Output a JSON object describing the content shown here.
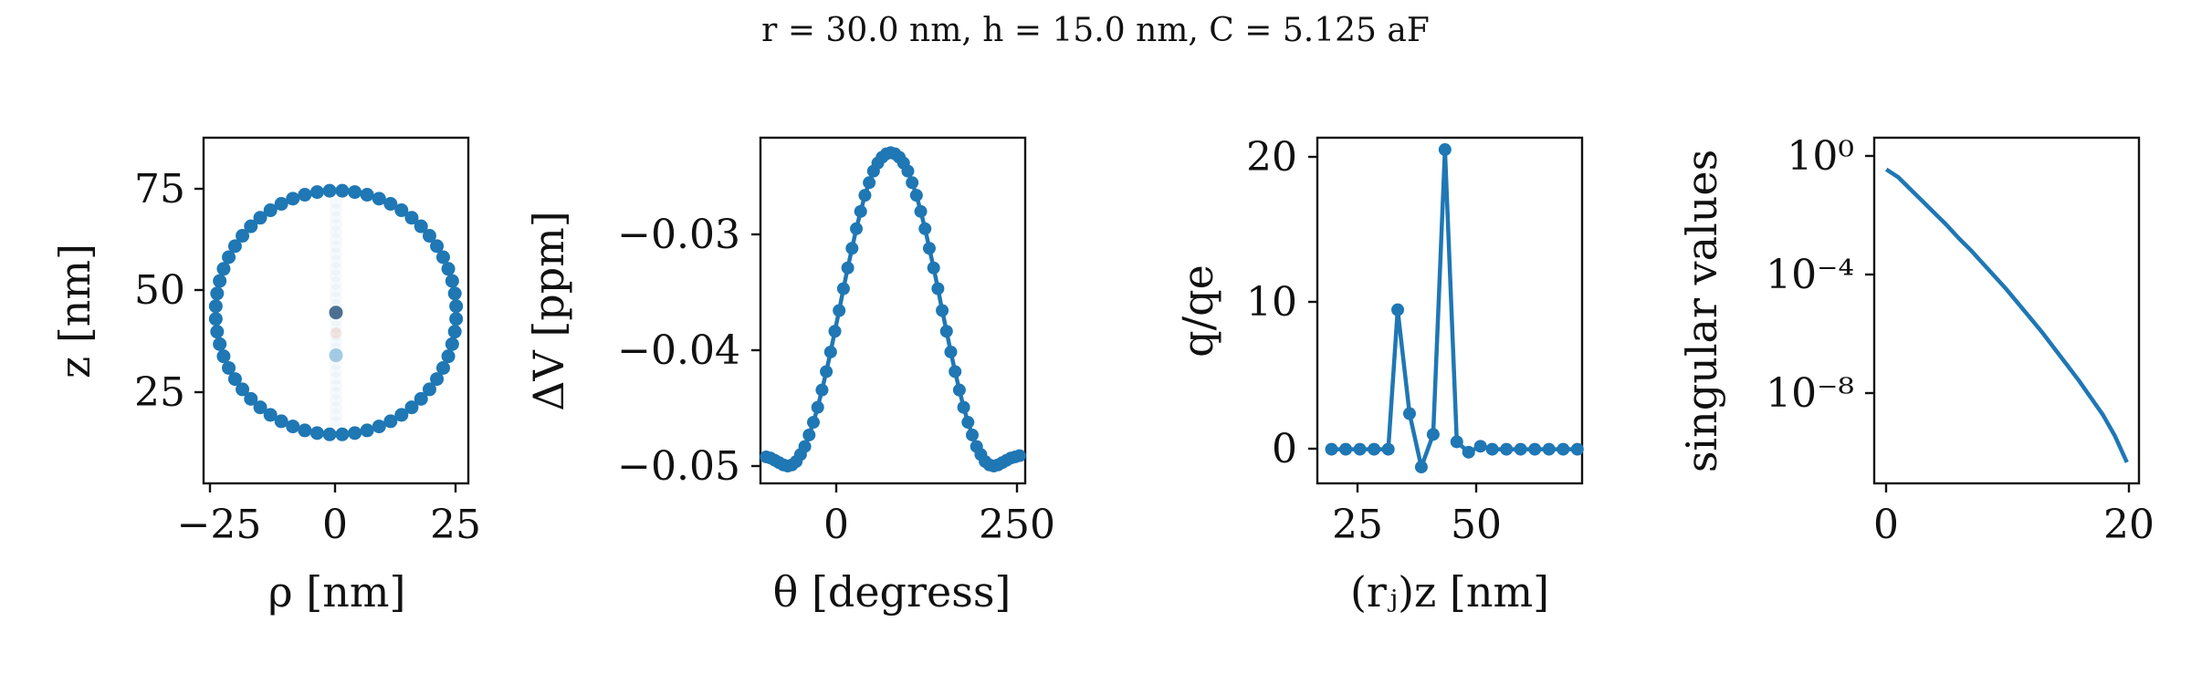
{
  "title": "r = 30.0 nm, h = 15.0 nm, C = 5.125 aF",
  "colors": {
    "series": "#1f77b4",
    "axes": "#111111",
    "background": "#ffffff"
  },
  "panels": {
    "p1": {
      "xlabel": "ρ [nm]",
      "ylabel": "z [nm]",
      "xticks": [
        "−25",
        "0",
        "25"
      ],
      "yticks": [
        "25",
        "50",
        "75"
      ]
    },
    "p2": {
      "xlabel": "θ [degress]",
      "ylabel": "ΔV [ppm]",
      "xticks": [
        "0",
        "250"
      ],
      "yticks": [
        "−0.03",
        "−0.04",
        "−0.05"
      ]
    },
    "p3": {
      "xlabel": "(rⱼ)z [nm]",
      "ylabel": "q/qe",
      "xticks": [
        "25",
        "50"
      ],
      "yticks": [
        "0",
        "10",
        "20"
      ]
    },
    "p4": {
      "xlabel": "",
      "ylabel": "singular values",
      "xticks": [
        "0",
        "20"
      ],
      "yticks": [
        "10⁰",
        "10⁻⁴",
        "10⁻⁸"
      ]
    }
  },
  "chart_data": [
    {
      "type": "scatter",
      "xlabel": "ρ [nm]",
      "ylabel": "z [nm]",
      "xlim": [
        -33,
        33
      ],
      "ylim": [
        3,
        88
      ],
      "grid": false,
      "description_points": "boundary points on a circle of radius 30 nm centered at z = 45 nm",
      "circle": {
        "center": [
          0,
          45
        ],
        "radius": 30,
        "n_points": 60
      },
      "inner_points": [
        {
          "x": 0,
          "y": 45
        },
        {
          "x": 0,
          "y": 34.5
        }
      ]
    },
    {
      "type": "line",
      "xlabel": "θ [degress]",
      "ylabel": "ΔV [ppm]",
      "xlim": [
        -95,
        275
      ],
      "ylim": [
        -0.0515,
        -0.0215
      ],
      "grid": false,
      "series": [
        {
          "x": [
            -87,
            -81,
            -75,
            -69,
            -63,
            -57,
            -51,
            -45,
            -39,
            -33,
            -27,
            -21,
            -15,
            -9,
            -3,
            3,
            9,
            15,
            21,
            27,
            33,
            39,
            45,
            51,
            57,
            63,
            69,
            75,
            81,
            87,
            93,
            99,
            105,
            111,
            117,
            123,
            129,
            135,
            141,
            147,
            153,
            159,
            165,
            171,
            177,
            183,
            189,
            195,
            201,
            207,
            213,
            219,
            225,
            231,
            237,
            243,
            249,
            255,
            261,
            267
          ],
          "y": [
            -0.0492,
            -0.0493,
            -0.0495,
            -0.0497,
            -0.0499,
            -0.05,
            -0.0499,
            -0.0496,
            -0.049,
            -0.0483,
            -0.0473,
            -0.0462,
            -0.0449,
            -0.0434,
            -0.0418,
            -0.0401,
            -0.0383,
            -0.0365,
            -0.0346,
            -0.0328,
            -0.0311,
            -0.0294,
            -0.0279,
            -0.0265,
            -0.0254,
            -0.0244,
            -0.0237,
            -0.0232,
            -0.0229,
            -0.0228,
            -0.0229,
            -0.0232,
            -0.0237,
            -0.0244,
            -0.0254,
            -0.0265,
            -0.0279,
            -0.0294,
            -0.0311,
            -0.0328,
            -0.0346,
            -0.0365,
            -0.0383,
            -0.0401,
            -0.0418,
            -0.0434,
            -0.0449,
            -0.0462,
            -0.0473,
            -0.0483,
            -0.049,
            -0.0496,
            -0.0499,
            -0.05,
            -0.0499,
            -0.0497,
            -0.0495,
            -0.0493,
            -0.0492,
            -0.0491
          ]
        }
      ]
    },
    {
      "type": "line",
      "xlabel": "(rⱼ)z [nm]",
      "ylabel": "q/qe",
      "xlim": [
        17,
        73
      ],
      "ylim": [
        -2.3,
        21
      ],
      "grid": false,
      "series": [
        {
          "x": [
            20,
            23,
            26,
            29,
            32,
            34,
            36.5,
            39,
            41.5,
            44,
            46.5,
            49,
            51.5,
            54,
            57,
            60,
            63,
            66,
            69,
            72
          ],
          "y": [
            0,
            0,
            0,
            0,
            0,
            9.4,
            2.4,
            -1.2,
            1.0,
            20.2,
            0.5,
            -0.2,
            0.2,
            0,
            0,
            0,
            0,
            0,
            0,
            0
          ]
        }
      ]
    },
    {
      "type": "line",
      "xlabel": "",
      "ylabel": "singular values",
      "xlim": [
        -1,
        21
      ],
      "ylim": [
        -11.8,
        1.3
      ],
      "yscale": "log",
      "grid": false,
      "series": [
        {
          "x": [
            0,
            1,
            2,
            3,
            4,
            5,
            6,
            7,
            8,
            9,
            10,
            11,
            12,
            13,
            14,
            15,
            16,
            17,
            18,
            19,
            20
          ],
          "y_log10": [
            0.1,
            -0.2,
            -0.65,
            -1.1,
            -1.55,
            -2.0,
            -2.5,
            -2.95,
            -3.45,
            -3.95,
            -4.45,
            -5.0,
            -5.55,
            -6.1,
            -6.7,
            -7.3,
            -7.9,
            -8.55,
            -9.2,
            -10.0,
            -11.0
          ]
        }
      ]
    }
  ]
}
